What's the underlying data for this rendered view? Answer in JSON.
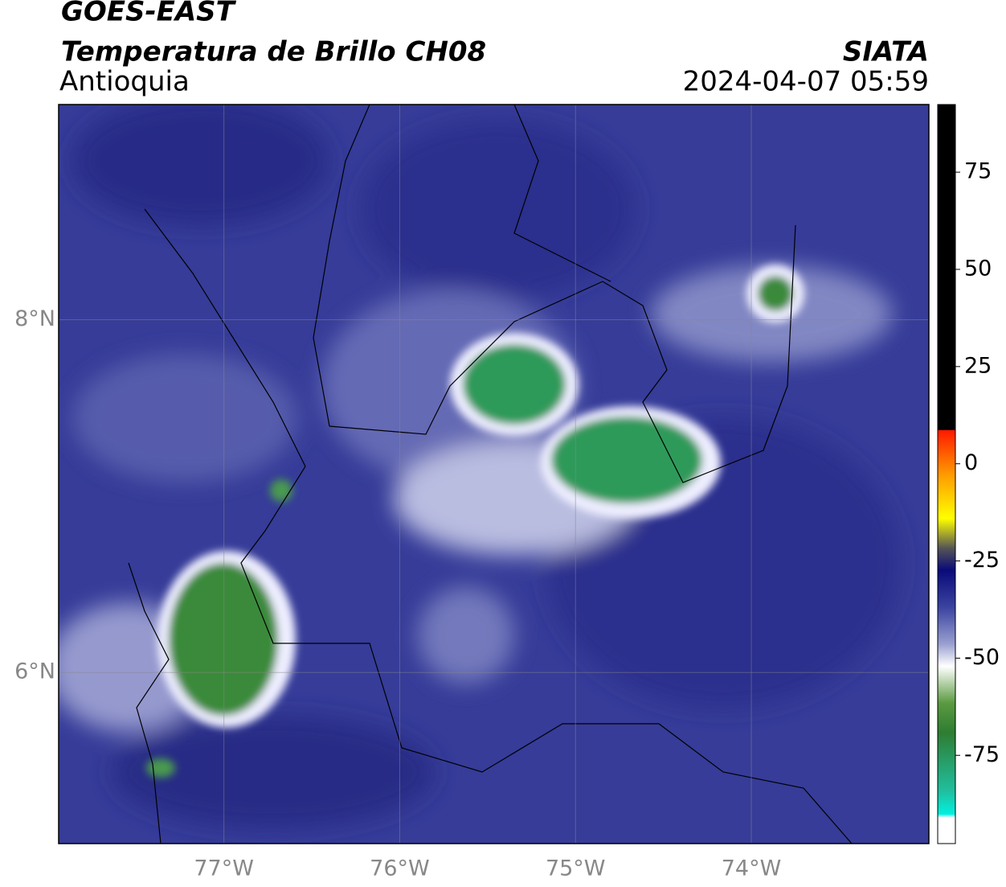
{
  "header": {
    "satellite": "GOES-EAST",
    "product": "Temperatura de Brillo CH08",
    "region": "Antioquia",
    "source": "SIATA",
    "datetime": "2024-04-07 05:59"
  },
  "map": {
    "xlim": [
      -77.94,
      -72.99
    ],
    "ylim": [
      5.03,
      9.22
    ],
    "xticks": [
      {
        "value": -77,
        "label": "77°W"
      },
      {
        "value": -76,
        "label": "76°W"
      },
      {
        "value": -75,
        "label": "75°W"
      },
      {
        "value": -74,
        "label": "74°W"
      }
    ],
    "yticks": [
      {
        "value": 6,
        "label": "6°N"
      },
      {
        "value": 8,
        "label": "8°N"
      }
    ],
    "grid": true
  },
  "colorbar": {
    "lim": [
      -97.7,
      92.4
    ],
    "ticks": [
      75,
      50,
      25,
      0,
      -25,
      -50,
      -75
    ]
  }
}
